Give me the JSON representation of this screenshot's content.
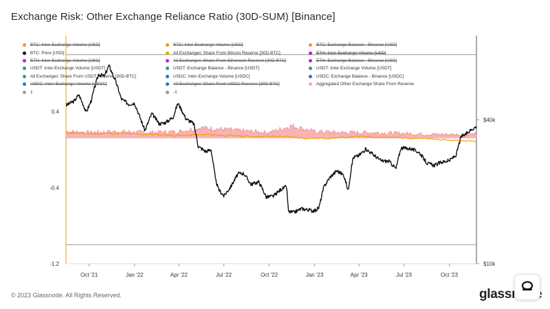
{
  "title": "Exchange Risk: Other Exchange Reliance Ratio (30D-SUM) [Binance]",
  "footer": "© 2023 Glassnode. All Rights Reserved.",
  "brand": "glassnode",
  "legend": [
    {
      "label": "BTC: Inter-Exchange Volume [USD]",
      "color": "#f7931a",
      "off": true
    },
    {
      "label": "BTC: Inter-Exchange Volume [USD]",
      "color": "#f7931a",
      "off": true
    },
    {
      "label": "BTC: Exchange Balance - Binance [USD]",
      "color": "#f7931a",
      "off": true
    },
    {
      "label": "BTC: Price [USD]",
      "color": "#111111",
      "off": false
    },
    {
      "label": "All Exchanges' Share From Bitcoin Reserve [30D-BTC]",
      "color": "#f59d00",
      "off": false
    },
    {
      "label": "ETH: Inter-Exchange Volume [USD]",
      "color": "#b620d8",
      "off": true
    },
    {
      "label": "ETH: Inter-Exchange Volume [USD]",
      "color": "#b620d8",
      "off": true
    },
    {
      "label": "All Exchanges' Share From Ethereum Reserve [30D-BTC]",
      "color": "#b620d8",
      "off": true
    },
    {
      "label": "ETH: Exchange Balance - Binance [USD]",
      "color": "#b620d8",
      "off": true
    },
    {
      "label": "USDT: Inter-Exchange Volume [USDT]",
      "color": "#26a17b",
      "off": false
    },
    {
      "label": "USDT: Exchange Balance - Binance [USDT]",
      "color": "#26a17b",
      "off": false
    },
    {
      "label": "USDT: Inter-Exchange Volume [USDT]",
      "color": "#26a17b",
      "off": false
    },
    {
      "label": "All Exchanges' Share From USDT Reserve [30D-BTC]",
      "color": "#26a17b",
      "off": false
    },
    {
      "label": "USDC: Inter-Exchange Volume [USDC]",
      "color": "#2775ca",
      "off": false
    },
    {
      "label": "USDC: Exchange Balance - Binance [USDC]",
      "color": "#2775ca",
      "off": false
    },
    {
      "label": "USDC: Inter-Exchange Volume [USDC]",
      "color": "#2775ca",
      "off": true
    },
    {
      "label": "All Exchanges' Share From USDC Reserve [30D-BTC]",
      "color": "#2775ca",
      "off": true
    },
    {
      "label": "Aggregated Other Exchange Share From Reserve",
      "color": "#f5a3a3",
      "off": false
    },
    {
      "label": "1",
      "color": "#9a9a9a",
      "off": false
    },
    {
      "label": "-1",
      "color": "#9a9a9a",
      "off": false
    }
  ],
  "chart_data": {
    "type": "line",
    "title": "Exchange Risk: Other Exchange Reliance Ratio (30D-SUM) [Binance]",
    "x_ticks": [
      "Oct '21",
      "Jan '22",
      "Apr '22",
      "Jul '22",
      "Oct '22",
      "Jan '23",
      "Apr '23",
      "Jul '23",
      "Oct '23"
    ],
    "x_range": [
      "2021-08-15",
      "2023-11-25"
    ],
    "y_left_ticks": [
      0.4,
      -0.4,
      -1.2
    ],
    "y_left_range": [
      -1.2,
      1.2
    ],
    "y_right_ticks": [
      "$40k",
      "$10k"
    ],
    "y_right_scale": "log",
    "y_right_range": [
      10000,
      90000
    ],
    "reference_lines": [
      1,
      -1
    ],
    "grid": false,
    "legend_position": "top",
    "series": [
      {
        "name": "BTC: Price [USD]",
        "color": "#111111",
        "axis": "right",
        "x": [
          "2021-08-15",
          "2021-09-01",
          "2021-09-10",
          "2021-09-25",
          "2021-10-05",
          "2021-10-20",
          "2021-11-01",
          "2021-11-10",
          "2021-11-25",
          "2021-12-05",
          "2021-12-20",
          "2022-01-01",
          "2022-01-10",
          "2022-01-22",
          "2022-02-05",
          "2022-02-20",
          "2022-03-05",
          "2022-03-20",
          "2022-03-30",
          "2022-04-15",
          "2022-05-01",
          "2022-05-10",
          "2022-05-25",
          "2022-06-05",
          "2022-06-14",
          "2022-06-20",
          "2022-07-01",
          "2022-07-15",
          "2022-07-30",
          "2022-08-10",
          "2022-08-25",
          "2022-09-10",
          "2022-09-25",
          "2022-10-10",
          "2022-10-25",
          "2022-11-05",
          "2022-11-09",
          "2022-11-20",
          "2022-12-05",
          "2022-12-20",
          "2023-01-01",
          "2023-01-10",
          "2023-01-20",
          "2023-02-01",
          "2023-02-15",
          "2023-03-01",
          "2023-03-10",
          "2023-03-20",
          "2023-04-01",
          "2023-04-15",
          "2023-05-01",
          "2023-05-15",
          "2023-06-01",
          "2023-06-15",
          "2023-06-25",
          "2023-07-15",
          "2023-08-01",
          "2023-08-17",
          "2023-09-01",
          "2023-09-15",
          "2023-10-01",
          "2023-10-15",
          "2023-10-25",
          "2023-11-05",
          "2023-11-15",
          "2023-11-25"
        ],
        "values": [
          46000,
          48000,
          51000,
          43000,
          48000,
          62000,
          61000,
          67500,
          57000,
          49000,
          46500,
          47000,
          42000,
          36000,
          42500,
          38500,
          39000,
          41000,
          47000,
          40500,
          38500,
          31000,
          29500,
          30000,
          22500,
          20500,
          19200,
          21000,
          23800,
          23900,
          21500,
          22000,
          19000,
          19200,
          20500,
          21000,
          16500,
          16400,
          17000,
          16800,
          16600,
          17200,
          21000,
          23000,
          24500,
          23500,
          20200,
          27800,
          28400,
          30200,
          28500,
          27000,
          26800,
          25000,
          30500,
          30300,
          29200,
          26300,
          25800,
          26600,
          27000,
          28500,
          34000,
          35000,
          36500,
          37500
        ]
      },
      {
        "name": "All Exchanges' Share From Bitcoin Reserve [30D-BTC]",
        "color": "#f59d00",
        "axis": "left",
        "x": [
          "2021-08-15",
          "2021-10-01",
          "2021-12-01",
          "2022-02-01",
          "2022-04-01",
          "2022-06-01",
          "2022-07-01",
          "2022-09-01",
          "2022-11-01",
          "2022-12-15",
          "2023-02-01",
          "2023-04-01",
          "2023-06-01",
          "2023-08-01",
          "2023-10-01",
          "2023-11-25"
        ],
        "values": [
          0.18,
          0.17,
          0.17,
          0.16,
          0.15,
          0.16,
          0.15,
          0.14,
          0.14,
          0.12,
          0.12,
          0.14,
          0.13,
          0.12,
          0.1,
          0.09
        ]
      },
      {
        "name": "Aggregated Other Exchange Share From Reserve",
        "color": "#f5a3a3",
        "axis": "left",
        "x": [
          "2021-08-15",
          "2021-10-01",
          "2021-12-01",
          "2022-02-01",
          "2022-04-01",
          "2022-05-15",
          "2022-06-15",
          "2022-08-01",
          "2022-10-01",
          "2022-11-15",
          "2023-01-01",
          "2023-03-01",
          "2023-05-01",
          "2023-07-01",
          "2023-09-01",
          "2023-11-25"
        ],
        "values": [
          0.19,
          0.18,
          0.19,
          0.18,
          0.19,
          0.23,
          0.22,
          0.2,
          0.18,
          0.25,
          0.19,
          0.18,
          0.18,
          0.17,
          0.16,
          0.16
        ]
      }
    ]
  }
}
